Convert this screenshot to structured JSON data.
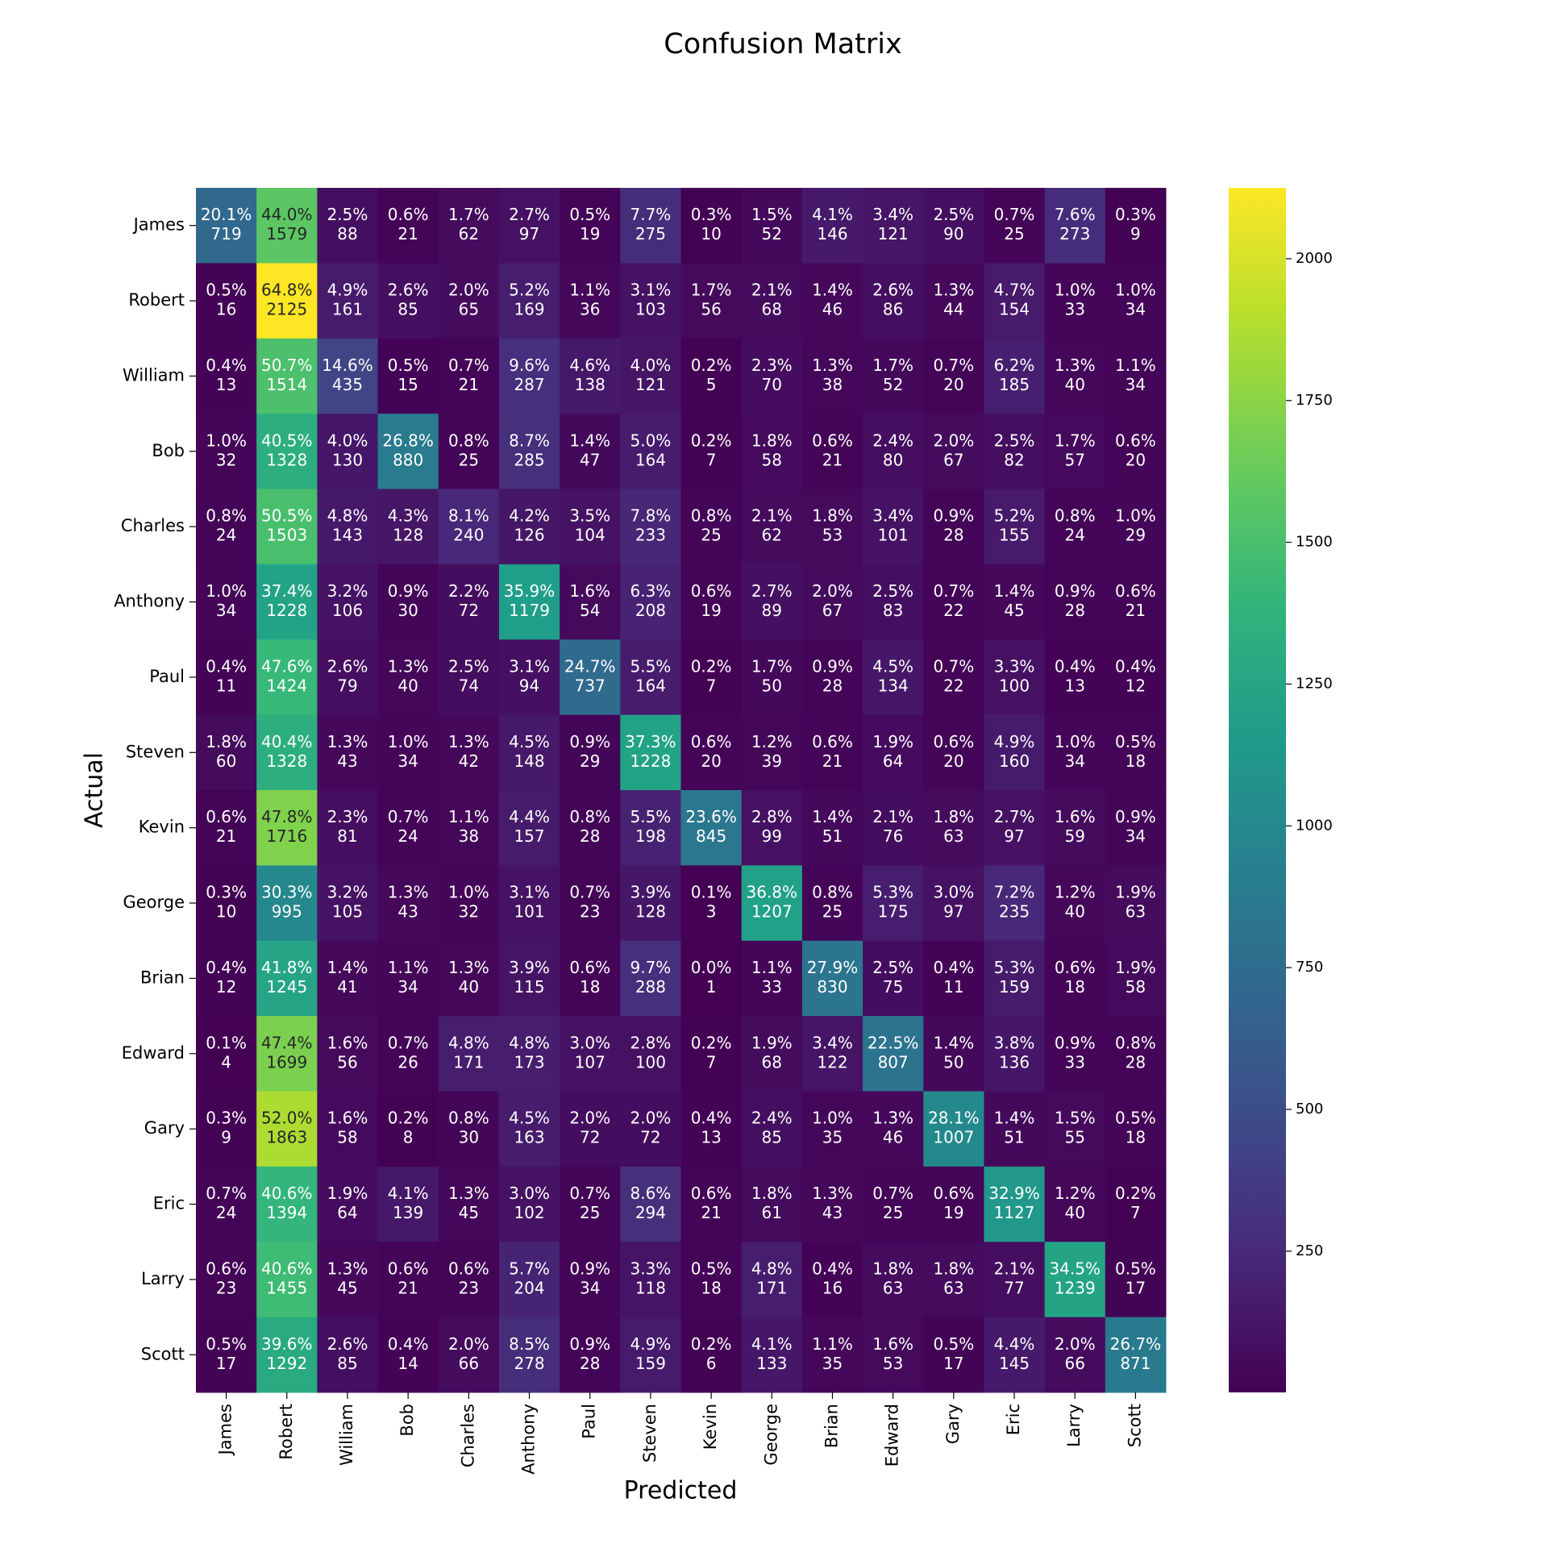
{
  "chart_data": {
    "type": "heatmap",
    "title": "Confusion Matrix",
    "x_label": "Predicted",
    "y_label": "Actual",
    "x_categories": [
      "James",
      "Robert",
      "William",
      "Bob",
      "Charles",
      "Anthony",
      "Paul",
      "Steven",
      "Kevin",
      "George",
      "Brian",
      "Edward",
      "Gary",
      "Eric",
      "Larry",
      "Scott"
    ],
    "y_categories": [
      "James",
      "Robert",
      "William",
      "Bob",
      "Charles",
      "Anthony",
      "Paul",
      "Steven",
      "Kevin",
      "George",
      "Brian",
      "Edward",
      "Gary",
      "Eric",
      "Larry",
      "Scott"
    ],
    "values": [
      [
        719,
        1579,
        88,
        21,
        62,
        97,
        19,
        275,
        10,
        52,
        146,
        121,
        90,
        25,
        273,
        9
      ],
      [
        16,
        2125,
        161,
        85,
        65,
        169,
        36,
        103,
        56,
        68,
        46,
        86,
        44,
        154,
        33,
        34
      ],
      [
        13,
        1514,
        435,
        15,
        21,
        287,
        138,
        121,
        5,
        70,
        38,
        52,
        20,
        185,
        40,
        34
      ],
      [
        32,
        1328,
        130,
        880,
        25,
        285,
        47,
        164,
        7,
        58,
        21,
        80,
        67,
        82,
        57,
        20
      ],
      [
        24,
        1503,
        143,
        128,
        240,
        126,
        104,
        233,
        25,
        62,
        53,
        101,
        28,
        155,
        24,
        29
      ],
      [
        34,
        1228,
        106,
        30,
        72,
        1179,
        54,
        208,
        19,
        89,
        67,
        83,
        22,
        45,
        28,
        21
      ],
      [
        11,
        1424,
        79,
        40,
        74,
        94,
        737,
        164,
        7,
        50,
        28,
        134,
        22,
        100,
        13,
        12
      ],
      [
        60,
        1328,
        43,
        34,
        42,
        148,
        29,
        1228,
        20,
        39,
        21,
        64,
        20,
        160,
        34,
        18
      ],
      [
        21,
        1716,
        81,
        24,
        38,
        157,
        28,
        198,
        845,
        99,
        51,
        76,
        63,
        97,
        59,
        34
      ],
      [
        10,
        995,
        105,
        43,
        32,
        101,
        23,
        128,
        3,
        1207,
        25,
        175,
        97,
        235,
        40,
        63
      ],
      [
        12,
        1245,
        41,
        34,
        40,
        115,
        18,
        288,
        1,
        33,
        830,
        75,
        11,
        159,
        18,
        58
      ],
      [
        4,
        1699,
        56,
        26,
        171,
        173,
        107,
        100,
        7,
        68,
        122,
        807,
        50,
        136,
        33,
        28
      ],
      [
        9,
        1863,
        58,
        8,
        30,
        163,
        72,
        72,
        13,
        85,
        35,
        46,
        1007,
        51,
        55,
        18
      ],
      [
        24,
        1394,
        64,
        139,
        45,
        102,
        25,
        294,
        21,
        61,
        43,
        25,
        19,
        1127,
        40,
        7
      ],
      [
        23,
        1455,
        45,
        21,
        23,
        204,
        34,
        118,
        18,
        171,
        16,
        63,
        63,
        77,
        1239,
        17
      ],
      [
        17,
        1292,
        85,
        14,
        66,
        278,
        28,
        159,
        6,
        133,
        35,
        53,
        17,
        145,
        66,
        871
      ]
    ],
    "percent_labels": [
      [
        "20.1%",
        "44.0%",
        "2.5%",
        "0.6%",
        "1.7%",
        "2.7%",
        "0.5%",
        "7.7%",
        "0.3%",
        "1.5%",
        "4.1%",
        "3.4%",
        "2.5%",
        "0.7%",
        "7.6%",
        "0.3%"
      ],
      [
        "0.5%",
        "64.8%",
        "4.9%",
        "2.6%",
        "2.0%",
        "5.2%",
        "1.1%",
        "3.1%",
        "1.7%",
        "2.1%",
        "1.4%",
        "2.6%",
        "1.3%",
        "4.7%",
        "1.0%",
        "1.0%"
      ],
      [
        "0.4%",
        "50.7%",
        "14.6%",
        "0.5%",
        "0.7%",
        "9.6%",
        "4.6%",
        "4.0%",
        "0.2%",
        "2.3%",
        "1.3%",
        "1.7%",
        "0.7%",
        "6.2%",
        "1.3%",
        "1.1%"
      ],
      [
        "1.0%",
        "40.5%",
        "4.0%",
        "26.8%",
        "0.8%",
        "8.7%",
        "1.4%",
        "5.0%",
        "0.2%",
        "1.8%",
        "0.6%",
        "2.4%",
        "2.0%",
        "2.5%",
        "1.7%",
        "0.6%"
      ],
      [
        "0.8%",
        "50.5%",
        "4.8%",
        "4.3%",
        "8.1%",
        "4.2%",
        "3.5%",
        "7.8%",
        "0.8%",
        "2.1%",
        "1.8%",
        "3.4%",
        "0.9%",
        "5.2%",
        "0.8%",
        "1.0%"
      ],
      [
        "1.0%",
        "37.4%",
        "3.2%",
        "0.9%",
        "2.2%",
        "35.9%",
        "1.6%",
        "6.3%",
        "0.6%",
        "2.7%",
        "2.0%",
        "2.5%",
        "0.7%",
        "1.4%",
        "0.9%",
        "0.6%"
      ],
      [
        "0.4%",
        "47.6%",
        "2.6%",
        "1.3%",
        "2.5%",
        "3.1%",
        "24.7%",
        "5.5%",
        "0.2%",
        "1.7%",
        "0.9%",
        "4.5%",
        "0.7%",
        "3.3%",
        "0.4%",
        "0.4%"
      ],
      [
        "1.8%",
        "40.4%",
        "1.3%",
        "1.0%",
        "1.3%",
        "4.5%",
        "0.9%",
        "37.3%",
        "0.6%",
        "1.2%",
        "0.6%",
        "1.9%",
        "0.6%",
        "4.9%",
        "1.0%",
        "0.5%"
      ],
      [
        "0.6%",
        "47.8%",
        "2.3%",
        "0.7%",
        "1.1%",
        "4.4%",
        "0.8%",
        "5.5%",
        "23.6%",
        "2.8%",
        "1.4%",
        "2.1%",
        "1.8%",
        "2.7%",
        "1.6%",
        "0.9%"
      ],
      [
        "0.3%",
        "30.3%",
        "3.2%",
        "1.3%",
        "1.0%",
        "3.1%",
        "0.7%",
        "3.9%",
        "0.1%",
        "36.8%",
        "0.8%",
        "5.3%",
        "3.0%",
        "7.2%",
        "1.2%",
        "1.9%"
      ],
      [
        "0.4%",
        "41.8%",
        "1.4%",
        "1.1%",
        "1.3%",
        "3.9%",
        "0.6%",
        "9.7%",
        "0.0%",
        "1.1%",
        "27.9%",
        "2.5%",
        "0.4%",
        "5.3%",
        "0.6%",
        "1.9%"
      ],
      [
        "0.1%",
        "47.4%",
        "1.6%",
        "0.7%",
        "4.8%",
        "4.8%",
        "3.0%",
        "2.8%",
        "0.2%",
        "1.9%",
        "3.4%",
        "22.5%",
        "1.4%",
        "3.8%",
        "0.9%",
        "0.8%"
      ],
      [
        "0.3%",
        "52.0%",
        "1.6%",
        "0.2%",
        "0.8%",
        "4.5%",
        "2.0%",
        "2.0%",
        "0.4%",
        "2.4%",
        "1.0%",
        "1.3%",
        "28.1%",
        "1.4%",
        "1.5%",
        "0.5%"
      ],
      [
        "0.7%",
        "40.6%",
        "1.9%",
        "4.1%",
        "1.3%",
        "3.0%",
        "0.7%",
        "8.6%",
        "0.6%",
        "1.8%",
        "1.3%",
        "0.7%",
        "0.6%",
        "32.9%",
        "1.2%",
        "0.2%"
      ],
      [
        "0.6%",
        "40.6%",
        "1.3%",
        "0.6%",
        "0.6%",
        "5.7%",
        "0.9%",
        "3.3%",
        "0.5%",
        "4.8%",
        "0.4%",
        "1.8%",
        "1.8%",
        "2.1%",
        "34.5%",
        "0.5%"
      ],
      [
        "0.5%",
        "39.6%",
        "2.6%",
        "0.4%",
        "2.0%",
        "8.5%",
        "0.9%",
        "4.9%",
        "0.2%",
        "4.1%",
        "1.1%",
        "1.6%",
        "0.5%",
        "4.4%",
        "2.0%",
        "26.7%"
      ]
    ],
    "colormap": "viridis",
    "zlim": [
      1,
      2125
    ],
    "zticks": [
      250,
      500,
      750,
      1000,
      1250,
      1500,
      1750,
      2000
    ]
  }
}
